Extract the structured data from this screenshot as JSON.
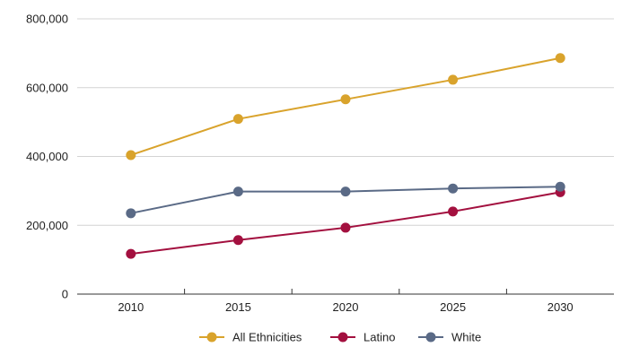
{
  "chart_data": {
    "type": "line",
    "title": "",
    "xlabel": "",
    "ylabel": "",
    "x": [
      "2010",
      "2015",
      "2020",
      "2025",
      "2030"
    ],
    "ylim": [
      0,
      800000
    ],
    "yticks": [
      0,
      200000,
      400000,
      600000,
      800000
    ],
    "ytick_labels": [
      "0",
      "200,000",
      "400,000",
      "600,000",
      "800,000"
    ],
    "grid": "horizontal",
    "legend_position": "bottom",
    "series": [
      {
        "name": "All Ethnicities",
        "color": "#D9A32C",
        "values": [
          404000,
          509000,
          566000,
          623000,
          686000
        ]
      },
      {
        "name": "Latino",
        "color": "#A3103F",
        "values": [
          117000,
          157000,
          193000,
          240000,
          296000
        ]
      },
      {
        "name": "White",
        "color": "#5A6A86",
        "values": [
          235000,
          298000,
          298000,
          307000,
          312000
        ]
      }
    ]
  }
}
